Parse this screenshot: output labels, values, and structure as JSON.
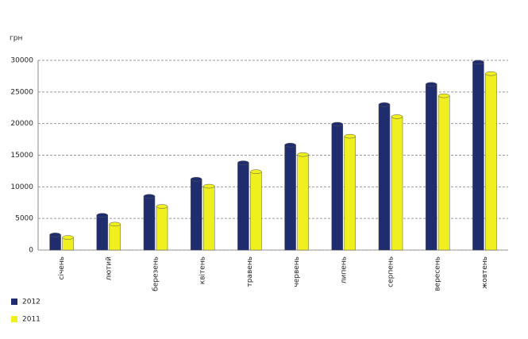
{
  "chart_data": {
    "type": "bar",
    "y_label": "грн",
    "categories": [
      "січень",
      "лютий",
      "березень",
      "квітень",
      "травень",
      "червень",
      "липень",
      "серпень",
      "вересень",
      "жовтень"
    ],
    "series": [
      {
        "name": "2012",
        "color": "#1f2d6e",
        "values": [
          2400,
          5500,
          8500,
          11200,
          13800,
          16600,
          19900,
          23000,
          26200,
          29700
        ]
      },
      {
        "name": "2011",
        "color": "#f0f020",
        "values": [
          2000,
          4100,
          6900,
          10100,
          12400,
          15100,
          18000,
          21100,
          24400,
          27900
        ]
      }
    ],
    "ylim": [
      0,
      30000
    ],
    "yticks": [
      0,
      5000,
      10000,
      15000,
      20000,
      25000,
      30000
    ],
    "grid": true
  }
}
